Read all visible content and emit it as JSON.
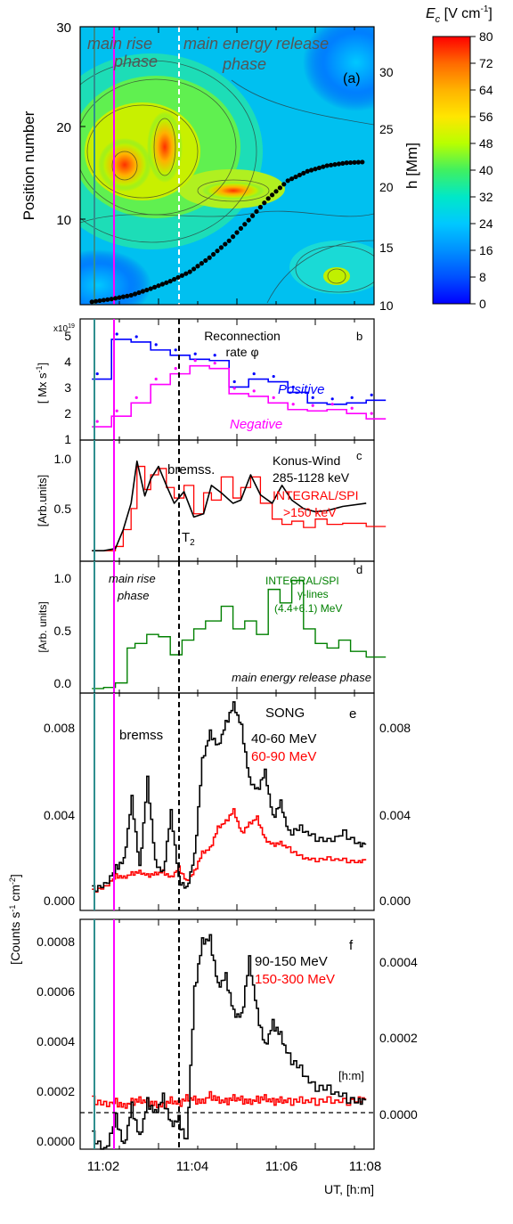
{
  "colorbar": {
    "title": "E",
    "title_sub": "c",
    "title_unit": " [V cm",
    "title_sup": "-1",
    "title_end": "]",
    "ticks": [
      "80",
      "72",
      "64",
      "56",
      "48",
      "40",
      "32",
      "24",
      "16",
      "8",
      "0"
    ],
    "stops": [
      "#ff0000",
      "#ff6a00",
      "#ffb300",
      "#ffe600",
      "#b8ff00",
      "#40f060",
      "#00e8c8",
      "#00c8ff",
      "#0090ff",
      "#0050ff",
      "#0000ff"
    ]
  },
  "time_axis": {
    "ticks": [
      "11:02",
      "11:04",
      "11:06",
      "11:08"
    ],
    "xlabel": "UT, [h:m]"
  },
  "chart_data": [
    {
      "id": "a",
      "type": "heatmap",
      "panel_label": "(a)",
      "ylabel": "Position number",
      "y2label": "h [Mm]",
      "yticks": [
        "30",
        "20",
        "10"
      ],
      "y2ticks": [
        "30",
        "25",
        "20",
        "15",
        "10"
      ],
      "phase_left_1": "main rise",
      "phase_left_2": "phase",
      "phase_right_1": "main energy release",
      "phase_right_2": "phase",
      "x_minutes": [
        0,
        0.5,
        1,
        1.5,
        2,
        2.5,
        3,
        3.5,
        4,
        4.5,
        5,
        5.5,
        6,
        6.5,
        7
      ],
      "height_Mm": [
        10.3,
        10.6,
        11,
        11.7,
        12.5,
        13.5,
        15,
        16.8,
        19,
        21.3,
        23.2,
        24.2,
        24.8,
        25.1,
        25.2
      ],
      "colormap_range": [
        0,
        80
      ]
    },
    {
      "id": "b",
      "type": "line",
      "panel_label": "b",
      "ylabel": "[ Mx s",
      "ylabel_sup": "-1",
      "ylabel_end": "]",
      "multiplier": "x10",
      "multiplier_exp": "19",
      "yticks": [
        "5",
        "4",
        "3",
        "2",
        "1"
      ],
      "ylim": [
        1,
        5.3
      ],
      "title_1": "Reconnection",
      "title_2": "rate φ",
      "x_minutes": [
        0,
        0.5,
        1,
        1.5,
        2,
        2.5,
        3,
        3.5,
        4,
        4.5,
        5,
        5.5,
        6,
        6.5,
        7
      ],
      "series": [
        {
          "name": "Positive",
          "color": "#0000ff",
          "values": [
            3.1,
            4.6,
            4.5,
            4.2,
            4.0,
            3.85,
            3.8,
            2.8,
            3.1,
            3.0,
            2.6,
            2.2,
            2.15,
            2.2,
            2.3
          ]
        },
        {
          "name": "Negative",
          "color": "#ff00ff",
          "values": [
            1.3,
            1.7,
            2.2,
            2.9,
            3.3,
            3.6,
            3.5,
            2.55,
            2.45,
            2.2,
            1.95,
            1.9,
            1.95,
            1.8,
            1.6
          ]
        }
      ]
    },
    {
      "id": "c",
      "type": "line",
      "panel_label": "c",
      "ylabel": "[Arb.units]",
      "yticks": [
        "1.0",
        "0.5"
      ],
      "ylim": [
        0,
        1.15
      ],
      "annot_bremss": "bremss.",
      "annot_T": "T",
      "annot_T_sub": "2",
      "x_minutes": [
        0,
        0.3,
        0.6,
        0.8,
        1.0,
        1.15,
        1.35,
        1.5,
        1.7,
        1.9,
        2.1,
        2.35,
        2.6,
        2.85,
        3.05,
        3.3,
        3.6,
        3.8,
        4.05,
        4.3,
        4.6,
        4.85,
        5.1,
        5.4,
        5.7,
        6.0,
        6.4,
        7.0
      ],
      "series": [
        {
          "name": "Konus-Wind",
          "sub": "285-1128 keV",
          "color": "#000000",
          "values": [
            0.1,
            0.1,
            0.12,
            0.3,
            0.55,
            0.95,
            0.62,
            0.78,
            0.9,
            0.72,
            0.55,
            0.66,
            0.42,
            0.45,
            0.72,
            0.65,
            0.55,
            0.58,
            0.82,
            0.63,
            0.55,
            0.72,
            0.58,
            0.5,
            0.47,
            0.48,
            0.52,
            0.55
          ]
        },
        {
          "name": "INTEGRAL/SPI",
          "sub": ">150 keV",
          "color": "#ff0000",
          "values": [
            0.1,
            0.1,
            0.14,
            0.3,
            0.5,
            0.9,
            0.68,
            0.82,
            0.88,
            0.7,
            0.6,
            0.72,
            0.45,
            0.65,
            0.58,
            0.8,
            0.6,
            0.7,
            0.8,
            0.55,
            0.4,
            0.35,
            0.38,
            0.32,
            0.4,
            0.35,
            0.36,
            0.33
          ]
        }
      ]
    },
    {
      "id": "d",
      "type": "line",
      "panel_label": "d",
      "ylabel": "[Arb. units]",
      "yticks": [
        "1.0",
        "0.5",
        "0.0"
      ],
      "ylim": [
        -0.02,
        1.15
      ],
      "series_label_1": "INTEGRAL/SPI",
      "series_label_2": "γ-lines",
      "series_label_3": "(4.4+6.1) MeV",
      "phase_rise_1": "main rise",
      "phase_rise_2": "phase",
      "phase_release": "main energy release phase",
      "x_minutes": [
        0,
        0.3,
        0.6,
        0.9,
        1.1,
        1.4,
        1.7,
        2.0,
        2.3,
        2.6,
        2.9,
        3.3,
        3.6,
        3.9,
        4.2,
        4.5,
        4.8,
        5.1,
        5.4,
        5.7,
        6.0,
        6.3,
        6.6,
        7.0
      ],
      "series": [
        {
          "name": "INTEGRAL/SPI γ-lines",
          "color": "#008000",
          "values": [
            0.02,
            0.03,
            0.07,
            0.38,
            0.42,
            0.5,
            0.48,
            0.32,
            0.45,
            0.55,
            0.62,
            0.75,
            0.55,
            0.62,
            0.5,
            0.9,
            0.78,
            0.98,
            0.55,
            0.42,
            0.38,
            0.45,
            0.35,
            0.3
          ]
        }
      ]
    },
    {
      "id": "e",
      "type": "line",
      "panel_label": "e",
      "yticks": [
        "0.008",
        "0.004",
        "0.000"
      ],
      "y2ticks": [
        "0.008",
        "0.004",
        "0.000"
      ],
      "ylim": [
        -0.001,
        0.0103
      ],
      "instrument": "SONG",
      "annot_bremss": "bremss",
      "x_minutes": [
        0,
        0.3,
        0.6,
        0.8,
        1.0,
        1.2,
        1.4,
        1.6,
        1.8,
        2.0,
        2.2,
        2.4,
        2.6,
        2.8,
        3.0,
        3.2,
        3.4,
        3.6,
        3.8,
        4.0,
        4.2,
        4.4,
        4.6,
        4.8,
        5.0,
        5.3,
        5.6,
        6.0,
        6.4,
        6.8,
        7.0
      ],
      "series": [
        {
          "name": "40-60 MeV",
          "color": "#000000",
          "values": [
            0.0001,
            0.0003,
            0.0012,
            0.0016,
            0.0048,
            0.0012,
            0.0058,
            0.0015,
            0.0009,
            0.0041,
            0.0006,
            0.0001,
            0.0018,
            0.0068,
            0.0082,
            0.0075,
            0.0087,
            0.0097,
            0.0085,
            0.0058,
            0.0052,
            0.0062,
            0.0038,
            0.0046,
            0.003,
            0.0033,
            0.0028,
            0.0026,
            0.003,
            0.0024,
            0.0025
          ]
        },
        {
          "name": "60-90 MeV",
          "color": "#ff0000",
          "values": [
            0.0,
            0.0002,
            0.0008,
            0.0007,
            0.0009,
            0.001,
            0.0008,
            0.0009,
            0.001,
            0.0007,
            0.0012,
            0.0005,
            0.001,
            0.002,
            0.0022,
            0.0033,
            0.0036,
            0.0042,
            0.003,
            0.0035,
            0.0038,
            0.0027,
            0.0024,
            0.0025,
            0.0022,
            0.0018,
            0.0016,
            0.0017,
            0.0016,
            0.0015,
            0.0017
          ]
        }
      ]
    },
    {
      "id": "f",
      "type": "line",
      "panel_label": "f",
      "ylabel": "[Counts s",
      "ylabel_sup1": "-1",
      "ylabel_mid": " cm",
      "ylabel_sup2": "-2",
      "ylabel_end": "]",
      "yticks": [
        "0.0008",
        "0.0006",
        "0.0004",
        "0.0002",
        "0.0000"
      ],
      "y2ticks": [
        "0.0004",
        "0.0002",
        "0.0000"
      ],
      "ylim": [
        -0.00011,
        0.00092
      ],
      "annot_hm": "[h:m]",
      "x_minutes": [
        0,
        0.3,
        0.6,
        0.8,
        1.0,
        1.2,
        1.4,
        1.6,
        1.8,
        2.0,
        2.2,
        2.4,
        2.6,
        2.8,
        3.0,
        3.2,
        3.4,
        3.6,
        3.8,
        4.0,
        4.2,
        4.4,
        4.6,
        4.8,
        5.0,
        5.3,
        5.6,
        6.0,
        6.4,
        6.8,
        7.0
      ],
      "series": [
        {
          "name": "90-150 MeV",
          "color": "#000000",
          "values": [
            -5e-05,
            -0.00012,
            3e-05,
            -0.0001,
            8e-05,
            -6e-05,
            0.0001,
            5e-05,
            0.00012,
            0.0,
            2e-05,
            -8e-05,
            0.0006,
            0.00082,
            0.00083,
            0.00062,
            0.00066,
            0.0005,
            0.00048,
            0.00074,
            0.0005,
            0.00035,
            0.00045,
            0.0004,
            0.0003,
            0.00025,
            0.00017,
            0.00016,
            0.00012,
            0.0001,
            0.00012
          ]
        },
        {
          "name": "150-300 MeV",
          "color": "#ff0000",
          "values": [
            2e-05,
            0.0,
            1e-05,
            -1e-05,
            1e-05,
            2e-05,
            1e-05,
            0.0,
            -1e-05,
            2e-05,
            0.0,
            3e-05,
            2e-05,
            1e-05,
            4e-05,
            2e-05,
            1e-05,
            3e-05,
            2e-05,
            1e-05,
            2e-05,
            3e-05,
            1e-05,
            2e-05,
            1e-05,
            2e-05,
            1e-05,
            2e-05,
            1e-05,
            2e-05,
            3e-05
          ]
        }
      ]
    }
  ]
}
